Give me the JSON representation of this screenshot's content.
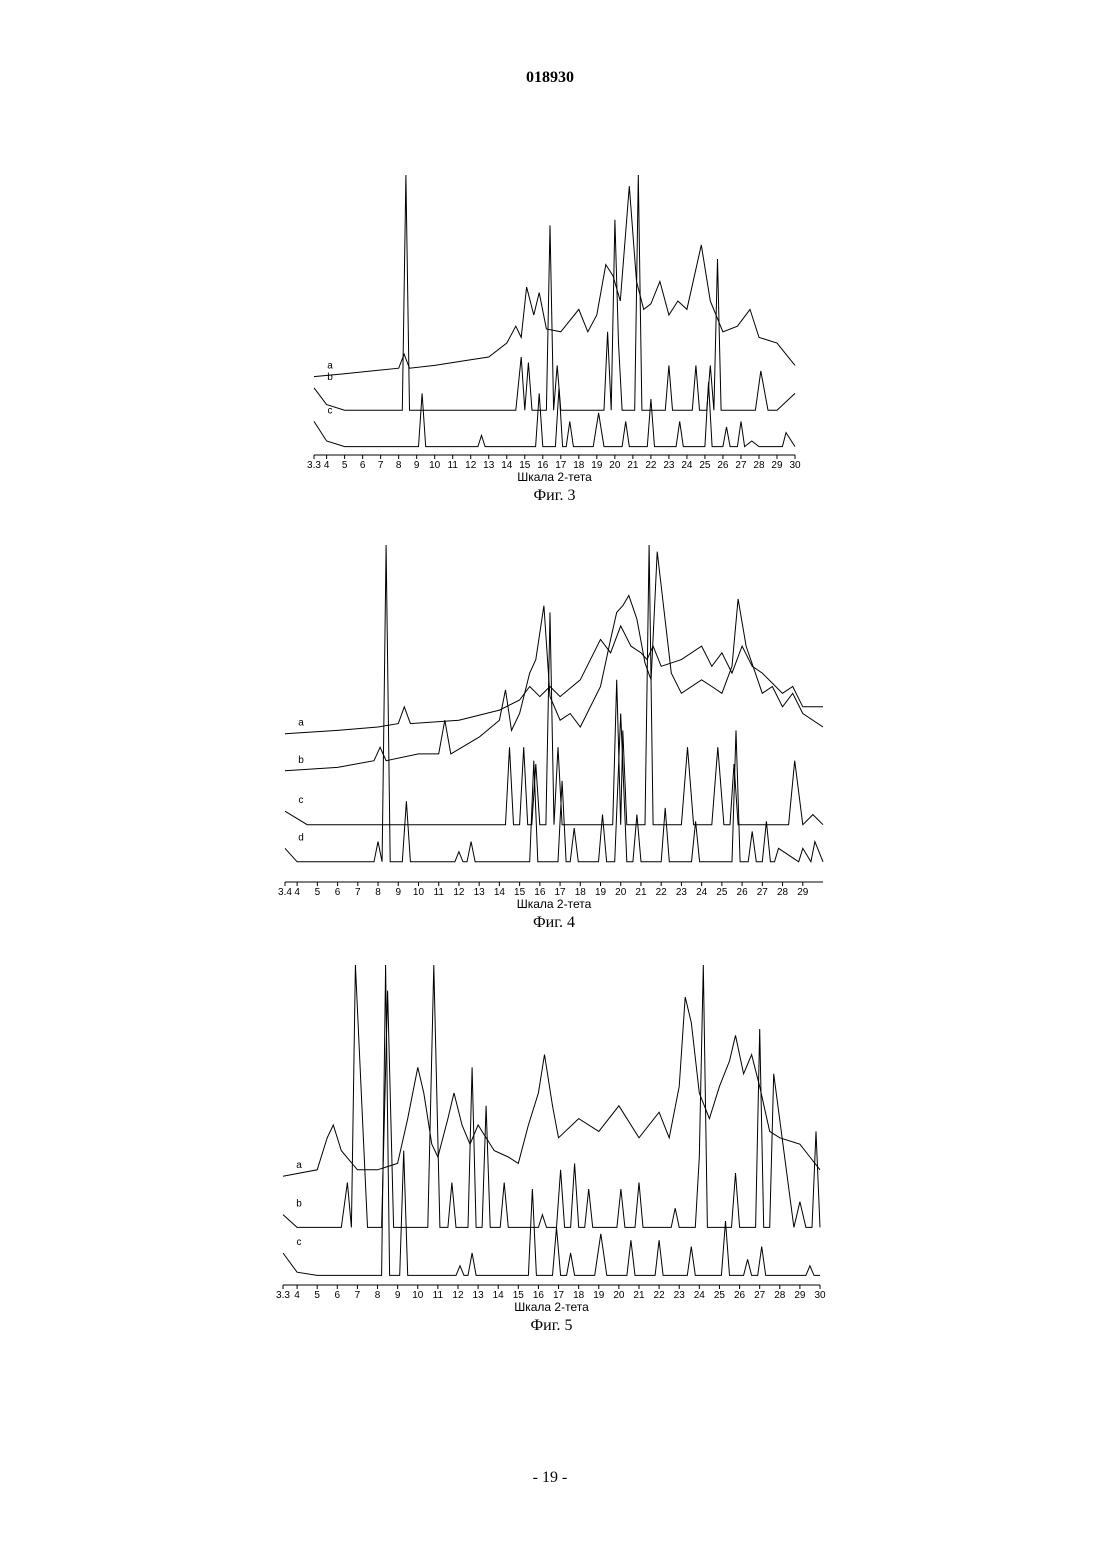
{
  "header": {
    "number": "018930"
  },
  "footer": {
    "page": "- 19 -"
  },
  "chart_data": [
    {
      "type": "line",
      "xlabel": "Шкала 2-тета",
      "caption": "Фиг. 3",
      "xlim": [
        3.3,
        30
      ],
      "ylim": [
        0,
        100
      ],
      "xticks": [
        3.3,
        4,
        5,
        6,
        7,
        8,
        9,
        10,
        11,
        12,
        13,
        14,
        15,
        16,
        17,
        18,
        19,
        20,
        21,
        22,
        23,
        24,
        25,
        26,
        27,
        28,
        29,
        30
      ],
      "series": [
        {
          "name": "a",
          "color": "#000000",
          "x": [
            3.3,
            5,
            8,
            8.3,
            8.6,
            10,
            12,
            13,
            14,
            14.5,
            14.8,
            15.1,
            15.5,
            15.8,
            16.2,
            17,
            18,
            18.5,
            19,
            19.5,
            19.9,
            20.3,
            20.8,
            21.2,
            21.6,
            22,
            22.5,
            23,
            23.5,
            24,
            24.8,
            25.3,
            26,
            26.8,
            27.5,
            28,
            29,
            30
          ],
          "values": [
            28,
            29,
            31,
            36,
            31,
            32,
            34,
            35,
            40,
            46,
            42,
            60,
            50,
            58,
            45,
            44,
            52,
            44,
            50,
            68,
            64,
            55,
            96,
            62,
            52,
            54,
            62,
            50,
            55,
            52,
            75,
            55,
            44,
            46,
            52,
            42,
            40,
            32
          ]
        },
        {
          "name": "b",
          "color": "#000000",
          "x": [
            3.3,
            4,
            5,
            8.2,
            8.4,
            8.6,
            14.5,
            14.8,
            15,
            15.2,
            15.4,
            15.6,
            16.2,
            16.4,
            16.6,
            16.8,
            17,
            19.4,
            19.6,
            19.8,
            20,
            20.2,
            20.4,
            21.1,
            21.3,
            21.5,
            22.8,
            23,
            23.2,
            24.3,
            24.5,
            24.7,
            25.1,
            25.3,
            25.5,
            25.7,
            25.9,
            26.1,
            27.8,
            28.1,
            28.5,
            29,
            30
          ],
          "values": [
            24,
            18,
            16,
            16,
            100,
            16,
            16,
            35,
            16,
            33,
            16,
            16,
            16,
            82,
            16,
            32,
            16,
            16,
            44,
            16,
            84,
            40,
            16,
            16,
            100,
            16,
            16,
            32,
            16,
            16,
            32,
            16,
            16,
            32,
            16,
            70,
            16,
            16,
            16,
            30,
            16,
            16,
            22
          ]
        },
        {
          "name": "c",
          "color": "#000000",
          "x": [
            3.3,
            4,
            5,
            9.1,
            9.3,
            9.5,
            12.4,
            12.6,
            12.8,
            15.6,
            15.8,
            16,
            16.7,
            16.9,
            17.1,
            17.3,
            17.5,
            17.7,
            18.8,
            19.1,
            19.4,
            20.4,
            20.6,
            20.8,
            21.8,
            22,
            22.2,
            23.4,
            23.6,
            23.8,
            25,
            25.2,
            25.4,
            26,
            26.2,
            26.4,
            26.8,
            27,
            27.2,
            27.6,
            28,
            29.3,
            29.5,
            30
          ],
          "values": [
            12,
            5,
            3,
            3,
            22,
            3,
            3,
            7,
            3,
            3,
            22,
            3,
            3,
            24,
            3,
            3,
            12,
            3,
            3,
            15,
            3,
            3,
            12,
            3,
            3,
            20,
            3,
            3,
            12,
            3,
            3,
            26,
            3,
            3,
            10,
            3,
            3,
            12,
            3,
            5,
            3,
            3,
            8,
            3
          ]
        }
      ]
    },
    {
      "type": "line",
      "xlabel": "Шкала 2-тета",
      "caption": "Фиг. 4",
      "xlim": [
        3.4,
        30
      ],
      "ylim": [
        0,
        100
      ],
      "xticks": [
        3.4,
        4,
        5,
        6,
        7,
        8,
        9,
        10,
        11,
        12,
        13,
        14,
        15,
        16,
        17,
        18,
        19,
        20,
        21,
        22,
        23,
        24,
        25,
        26,
        27,
        28,
        29
      ],
      "series": [
        {
          "name": "a",
          "color": "#000000",
          "x": [
            3.4,
            6,
            8,
            9,
            9.3,
            9.6,
            12,
            14,
            15,
            15.5,
            16,
            16.5,
            17,
            18,
            19,
            19.5,
            20,
            20.5,
            21,
            21.3,
            21.6,
            22,
            23,
            24,
            24.5,
            25,
            25.5,
            26,
            26.5,
            27,
            28,
            28.5,
            29,
            30
          ],
          "values": [
            44,
            45,
            46,
            47,
            52,
            47,
            48,
            51,
            54,
            58,
            55,
            58,
            55,
            60,
            72,
            68,
            76,
            70,
            68,
            66,
            70,
            64,
            66,
            70,
            64,
            68,
            62,
            70,
            64,
            62,
            56,
            58,
            52,
            52
          ]
        },
        {
          "name": "b",
          "color": "#000000",
          "x": [
            3.4,
            6,
            7.8,
            8.1,
            8.4,
            10,
            11,
            11.3,
            11.6,
            13,
            14,
            14.3,
            14.6,
            15,
            15.5,
            15.8,
            16.2,
            16.5,
            17,
            17.5,
            18,
            19,
            19.5,
            19.8,
            20.1,
            20.4,
            20.8,
            21.2,
            21.5,
            21.8,
            22.5,
            23,
            24,
            24.5,
            25,
            25.5,
            25.8,
            26.2,
            27,
            27.5,
            28,
            28.5,
            29,
            30
          ],
          "values": [
            33,
            34,
            36,
            40,
            36,
            38,
            38,
            48,
            38,
            43,
            48,
            57,
            45,
            50,
            62,
            66,
            82,
            55,
            48,
            50,
            46,
            58,
            72,
            80,
            82,
            85,
            78,
            65,
            60,
            98,
            62,
            56,
            60,
            58,
            56,
            64,
            84,
            70,
            56,
            58,
            52,
            56,
            50,
            46
          ]
        },
        {
          "name": "c",
          "color": "#000000",
          "x": [
            3.4,
            4.5,
            7.8,
            8,
            8.2,
            14.3,
            14.5,
            14.7,
            15,
            15.2,
            15.4,
            15.6,
            15.8,
            16,
            16.3,
            16.5,
            16.7,
            16.9,
            17.1,
            19.6,
            19.8,
            20,
            20.1,
            20.3,
            21.2,
            21.4,
            21.6,
            21.8,
            23,
            23.3,
            23.6,
            24.5,
            24.8,
            25.1,
            25.4,
            25.6,
            25.8,
            28.3,
            28.6,
            29,
            29.5,
            30
          ],
          "values": [
            21,
            17,
            17,
            17,
            17,
            17,
            40,
            17,
            17,
            40,
            17,
            17,
            35,
            17,
            17,
            80,
            17,
            40,
            17,
            17,
            60,
            17,
            45,
            17,
            17,
            100,
            17,
            17,
            17,
            40,
            17,
            17,
            40,
            17,
            17,
            35,
            17,
            17,
            36,
            17,
            20,
            17
          ]
        },
        {
          "name": "d",
          "color": "#000000",
          "x": [
            3.4,
            4,
            7.8,
            8,
            8.2,
            8.4,
            8.6,
            9.2,
            9.4,
            9.6,
            11.8,
            12,
            12.2,
            12.4,
            12.6,
            12.8,
            15.5,
            15.7,
            15.9,
            16.9,
            17.1,
            17.3,
            17.5,
            17.7,
            17.9,
            18.9,
            19.1,
            19.3,
            19.7,
            20,
            20.3,
            20.6,
            20.8,
            21,
            22,
            22.2,
            22.4,
            23.5,
            23.7,
            23.9,
            25.5,
            25.7,
            25.9,
            26.3,
            26.5,
            26.7,
            27,
            27.2,
            27.4,
            27.6,
            27.8,
            28.8,
            29,
            29.4,
            29.6,
            30
          ],
          "values": [
            10,
            6,
            6,
            12,
            6,
            100,
            6,
            6,
            24,
            6,
            6,
            9,
            6,
            6,
            12,
            6,
            6,
            36,
            6,
            6,
            30,
            6,
            6,
            16,
            6,
            6,
            20,
            6,
            6,
            50,
            6,
            6,
            20,
            6,
            6,
            22,
            6,
            6,
            18,
            6,
            6,
            45,
            6,
            6,
            15,
            6,
            6,
            18,
            6,
            6,
            10,
            6,
            10,
            6,
            12,
            6
          ]
        }
      ]
    },
    {
      "type": "line",
      "xlabel": "Шкала 2-тета",
      "caption": "Фиг. 5",
      "xlim": [
        3.3,
        30
      ],
      "ylim": [
        0,
        100
      ],
      "xticks": [
        3.3,
        4,
        5,
        6,
        7,
        8,
        9,
        10,
        11,
        12,
        13,
        14,
        15,
        16,
        17,
        18,
        19,
        20,
        21,
        22,
        23,
        24,
        25,
        26,
        27,
        28,
        29,
        30
      ],
      "series": [
        {
          "name": "a",
          "color": "#000000",
          "x": [
            3.3,
            5,
            5.5,
            5.8,
            6.2,
            7,
            8,
            9,
            9.5,
            10,
            10.3,
            10.7,
            11,
            11.5,
            11.8,
            12.2,
            12.6,
            13,
            13.4,
            13.8,
            14.5,
            15,
            15.5,
            16,
            16.3,
            16.7,
            17,
            18,
            19,
            20,
            21,
            22,
            22.5,
            23,
            23.3,
            23.6,
            24,
            24.5,
            25,
            25.5,
            25.8,
            26.2,
            26.6,
            27,
            27.5,
            28,
            29,
            29.5,
            30
          ],
          "values": [
            34,
            36,
            46,
            50,
            42,
            36,
            36,
            38,
            52,
            68,
            60,
            44,
            40,
            52,
            60,
            50,
            44,
            50,
            46,
            42,
            40,
            38,
            50,
            60,
            72,
            56,
            46,
            52,
            48,
            56,
            46,
            54,
            46,
            62,
            90,
            82,
            60,
            52,
            62,
            70,
            78,
            66,
            72,
            62,
            48,
            46,
            44,
            40,
            36
          ]
        },
        {
          "name": "b",
          "color": "#000000",
          "x": [
            3.3,
            4,
            6.2,
            6.5,
            6.7,
            6.9,
            7.5,
            8.2,
            8.5,
            8.8,
            9,
            10.5,
            10.8,
            11.1,
            11.5,
            11.7,
            11.9,
            12.5,
            12.7,
            12.9,
            13.2,
            13.4,
            13.6,
            14.1,
            14.3,
            14.5,
            16,
            16.2,
            16.4,
            16.9,
            17.1,
            17.3,
            17.6,
            17.8,
            18,
            18.3,
            18.5,
            18.7,
            19.9,
            20.1,
            20.3,
            20.8,
            21,
            21.2,
            22.6,
            22.8,
            23,
            23.8,
            24,
            24.2,
            24.4,
            25.6,
            25.8,
            26,
            26.8,
            27,
            27.2,
            27.5,
            27.7,
            28.7,
            29,
            29.3,
            29.6,
            29.8,
            30
          ],
          "values": [
            22,
            18,
            18,
            32,
            18,
            100,
            18,
            18,
            92,
            18,
            18,
            18,
            100,
            18,
            18,
            32,
            18,
            18,
            68,
            18,
            18,
            56,
            18,
            18,
            32,
            18,
            18,
            22,
            18,
            18,
            36,
            18,
            18,
            38,
            18,
            18,
            30,
            18,
            18,
            30,
            18,
            18,
            32,
            18,
            18,
            24,
            18,
            18,
            40,
            100,
            18,
            18,
            35,
            18,
            18,
            80,
            18,
            18,
            66,
            18,
            26,
            18,
            18,
            48,
            18
          ]
        },
        {
          "name": "c",
          "color": "#000000",
          "x": [
            3.3,
            4,
            5,
            8.2,
            8.4,
            8.6,
            9.1,
            9.3,
            9.5,
            11.9,
            12.1,
            12.3,
            12.5,
            12.7,
            12.9,
            15.5,
            15.7,
            15.9,
            16.7,
            16.9,
            17.1,
            17.4,
            17.6,
            17.8,
            18.8,
            19.1,
            19.4,
            20.4,
            20.6,
            20.8,
            21.8,
            22,
            22.2,
            23.4,
            23.6,
            23.8,
            25.1,
            25.3,
            25.5,
            25.8,
            26.2,
            26.4,
            26.6,
            26.9,
            27.1,
            27.3,
            29.3,
            29.5,
            29.7,
            30
          ],
          "values": [
            10,
            4,
            3,
            3,
            100,
            3,
            3,
            42,
            3,
            3,
            6,
            3,
            3,
            10,
            3,
            3,
            30,
            3,
            3,
            18,
            3,
            3,
            10,
            3,
            3,
            16,
            3,
            3,
            14,
            3,
            3,
            14,
            3,
            3,
            12,
            3,
            3,
            20,
            3,
            3,
            3,
            8,
            3,
            3,
            12,
            3,
            3,
            6,
            3,
            3
          ]
        }
      ]
    }
  ]
}
